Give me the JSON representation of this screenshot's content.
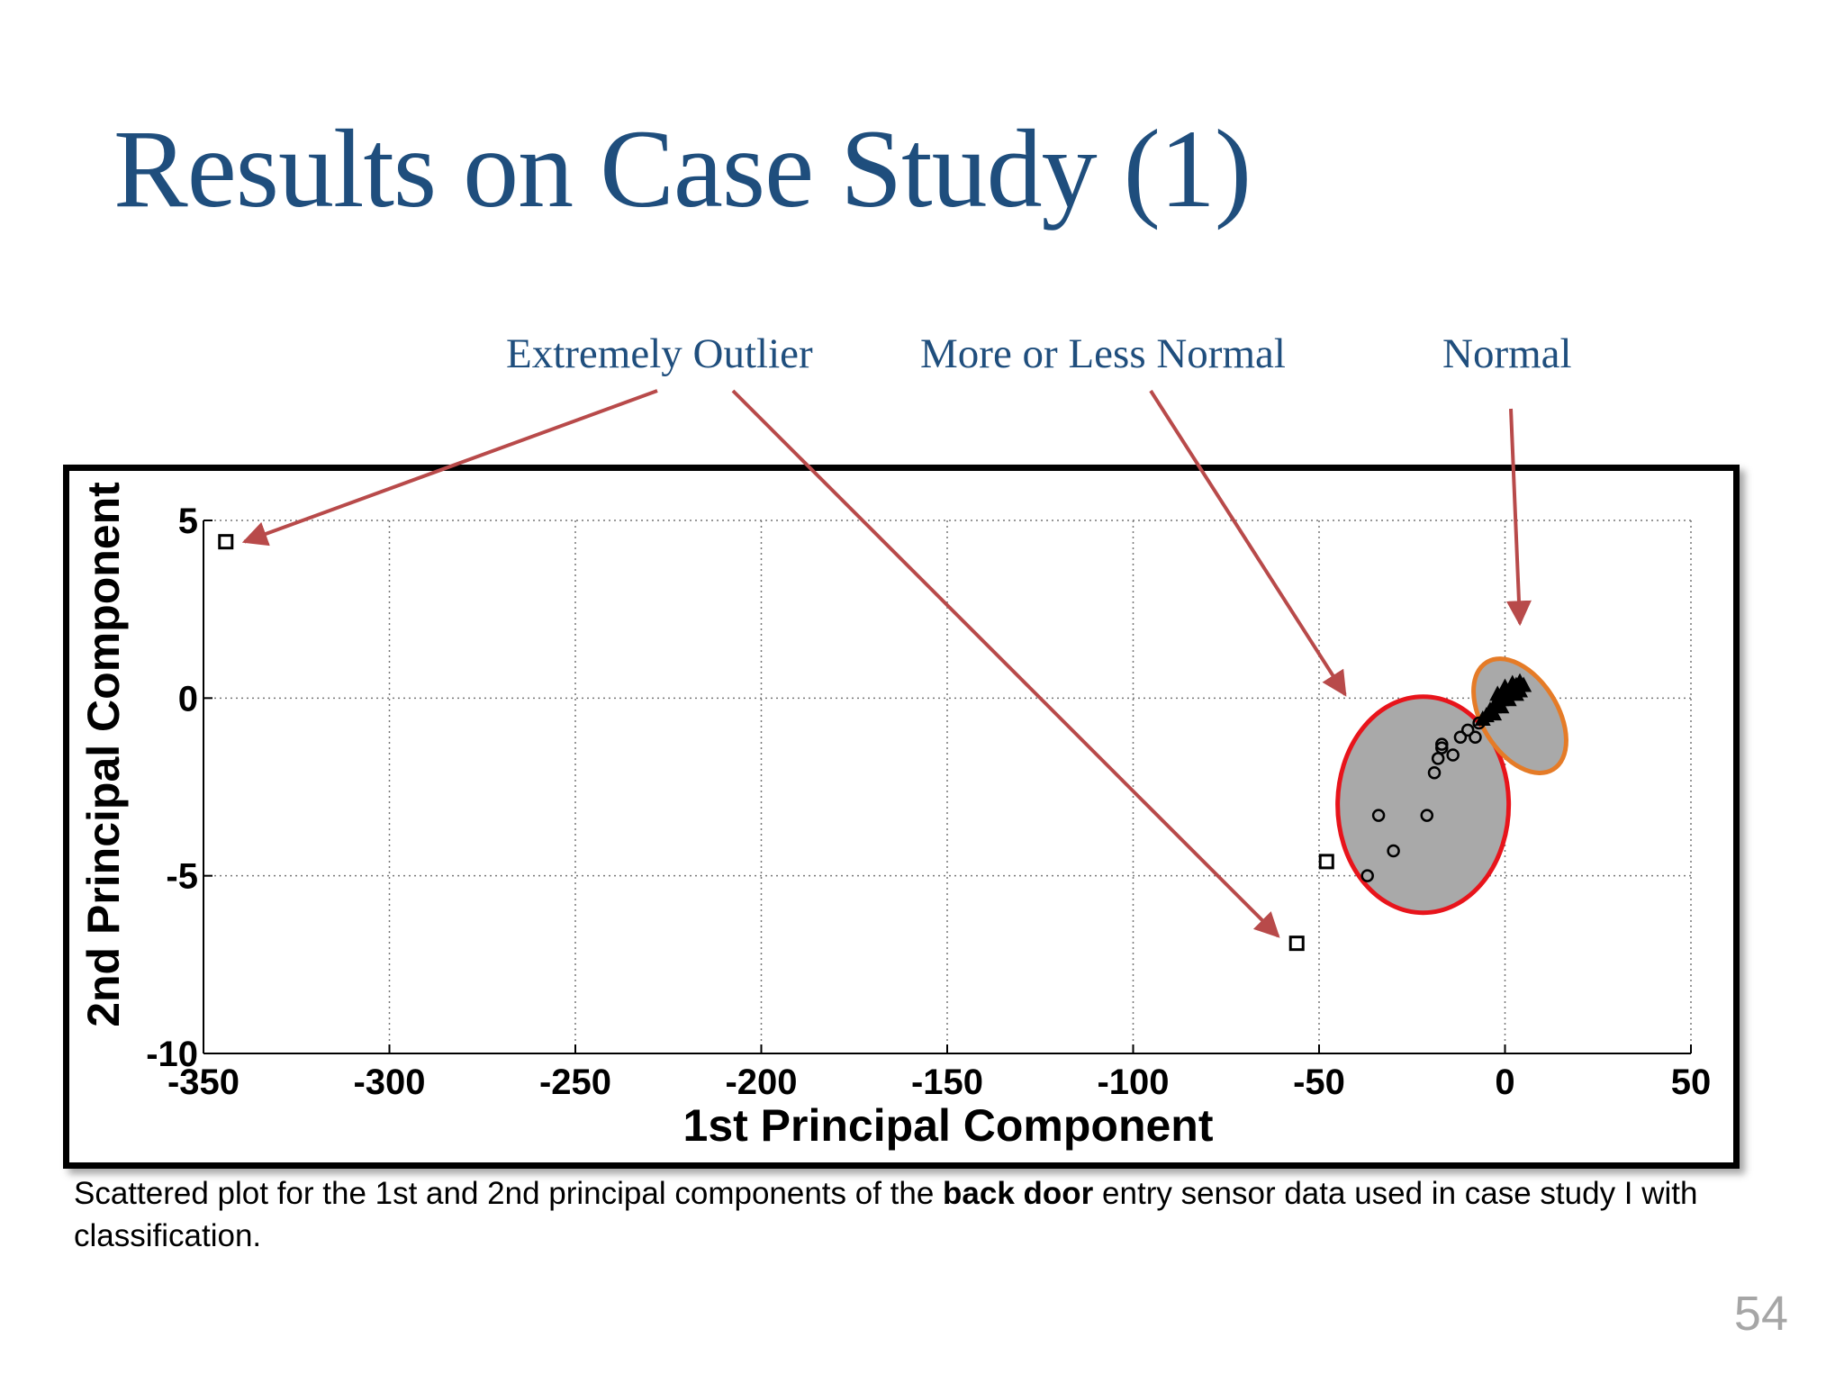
{
  "slide": {
    "title": "Results on Case Study (1)",
    "page_number": "54",
    "caption": {
      "before": "Scattered plot for the 1st and 2nd principal components of the ",
      "bold": "back door",
      "after": " entry sensor data used in case study I with classification."
    },
    "callouts": {
      "extremely_outlier": "Extremely Outlier",
      "more_or_less_normal": "More or Less Normal",
      "normal": "Normal"
    },
    "colors": {
      "title": "#1f4e7d",
      "arrow": "#b84a4a",
      "cluster_fill": "#a9a9a9",
      "more_less_ellipse": "#e8141b",
      "normal_ellipse": "#e57b27"
    }
  },
  "chart_data": {
    "type": "scatter",
    "xlabel": "1st Principal Component",
    "ylabel": "2nd Principal Component",
    "xlim": [
      -350,
      50
    ],
    "ylim": [
      -10,
      5
    ],
    "xticks": [
      -350,
      -300,
      -250,
      -200,
      -150,
      -100,
      -50,
      0,
      50
    ],
    "yticks": [
      -10,
      -5,
      0,
      5
    ],
    "grid": true,
    "series": [
      {
        "category": "Extremely Outlier",
        "marker": "square",
        "points": [
          [
            -344,
            4.4
          ],
          [
            -56,
            -6.9
          ],
          [
            -48,
            -4.6
          ]
        ]
      },
      {
        "category": "More or Less Normal",
        "marker": "circle",
        "points": [
          [
            -37,
            -5.0
          ],
          [
            -34,
            -3.3
          ],
          [
            -30,
            -4.3
          ],
          [
            -21,
            -3.3
          ],
          [
            -19,
            -2.1
          ],
          [
            -18,
            -1.7
          ],
          [
            -17,
            -1.4
          ],
          [
            -17,
            -1.3
          ],
          [
            -14,
            -1.6
          ],
          [
            -12,
            -1.1
          ],
          [
            -10,
            -0.9
          ],
          [
            -8,
            -1.1
          ],
          [
            -7,
            -0.7
          ]
        ]
      },
      {
        "category": "Normal",
        "marker": "filled-triangle",
        "points": [
          [
            -6,
            -0.6
          ],
          [
            -5,
            -0.5
          ],
          [
            -4,
            -0.35
          ],
          [
            -3,
            -0.25
          ],
          [
            -2,
            -0.15
          ],
          [
            -1,
            -0.05
          ],
          [
            0,
            0.05
          ],
          [
            1,
            0.15
          ],
          [
            2,
            0.25
          ],
          [
            3,
            0.35
          ],
          [
            4,
            0.45
          ],
          [
            -3,
            -0.45
          ],
          [
            -1,
            -0.25
          ],
          [
            1,
            -0.05
          ],
          [
            3,
            0.1
          ],
          [
            2,
            0.4
          ],
          [
            0,
            0.3
          ],
          [
            -2,
            0.1
          ],
          [
            4,
            0.2
          ],
          [
            5,
            0.35
          ]
        ]
      }
    ]
  }
}
